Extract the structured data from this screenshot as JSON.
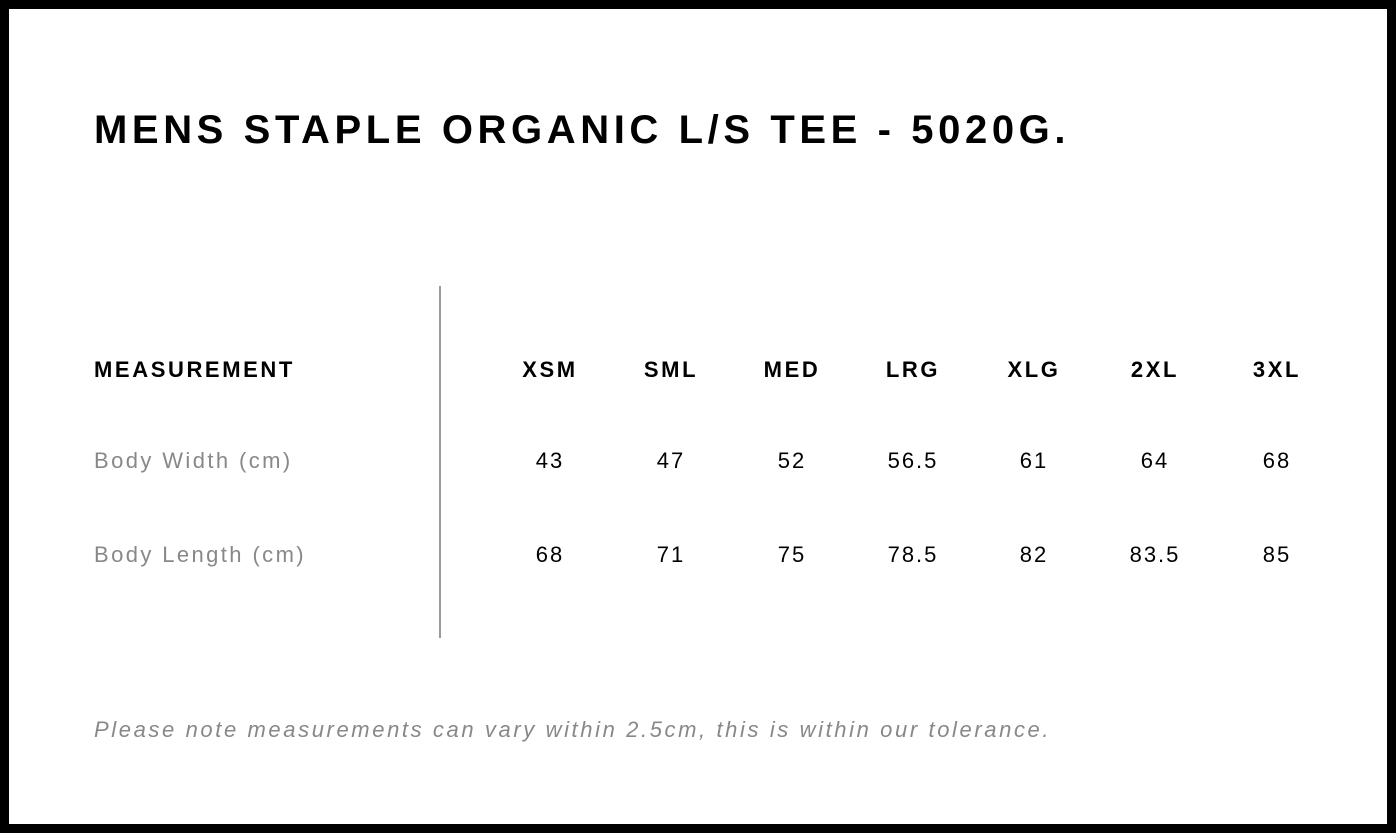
{
  "title": "MENS STAPLE ORGANIC L/S TEE - 5020G.",
  "table": {
    "header_label": "MEASUREMENT",
    "sizes": [
      "XSM",
      "SML",
      "MED",
      "LRG",
      "XLG",
      "2XL",
      "3XL"
    ],
    "rows": [
      {
        "label": "Body Width (cm)",
        "values": [
          "43",
          "47",
          "52",
          "56.5",
          "61",
          "64",
          "68"
        ]
      },
      {
        "label": "Body Length (cm)",
        "values": [
          "68",
          "71",
          "75",
          "78.5",
          "82",
          "83.5",
          "85"
        ]
      }
    ]
  },
  "note": "Please note measurements can vary within 2.5cm, this is within our tolerance.",
  "colors": {
    "border": "#000000",
    "label_gray": "#888888",
    "divider": "#9a9a9a"
  }
}
